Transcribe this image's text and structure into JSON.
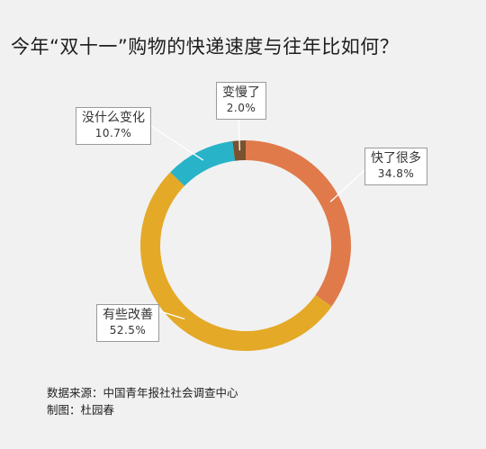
{
  "title": "今年“双十一”购物的快递速度与往年比如何？",
  "chart_data": {
    "type": "pie",
    "title": "今年“双十一”购物的快递速度与往年比如何？",
    "slices": [
      {
        "label": "快了很多",
        "value": 34.8,
        "display": "34.8%",
        "color": "#e07a4b"
      },
      {
        "label": "有些改善",
        "value": 52.5,
        "display": "52.5%",
        "color": "#e4a927"
      },
      {
        "label": "没什么变化",
        "value": 10.7,
        "display": "10.7%",
        "color": "#29b3c8"
      },
      {
        "label": "变慢了",
        "value": 2.0,
        "display": "2.0%",
        "color": "#7a5230"
      }
    ]
  },
  "footer": {
    "source": "数据来源：中国青年报社社会调查中心",
    "credit": "制图：杜园春"
  }
}
